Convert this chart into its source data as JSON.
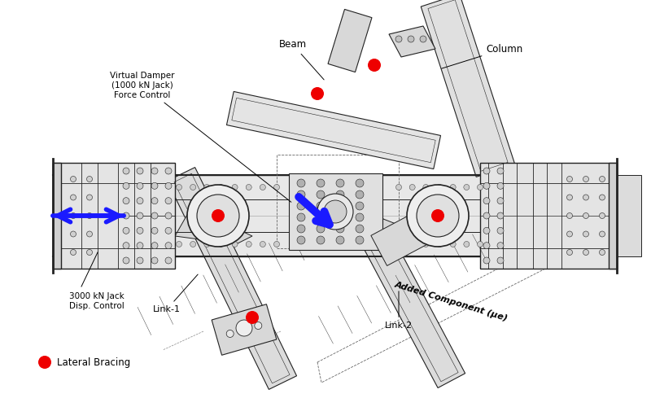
{
  "background_color": "#ffffff",
  "fig_width": 8.0,
  "fig_height": 5.0,
  "dpi": 100,
  "labels": {
    "virtual_damper": "Virtual Damper\n(1000 kN Jack)\nForce Control",
    "beam": "Beam",
    "column": "Column",
    "link1": "Link-1",
    "link2": "Link-2",
    "jack": "3000 kN Jack\nDisp. Control",
    "lateral_bracing": "Lateral Bracing",
    "added_component": "Added Component (μe)"
  },
  "colors": {
    "struct_edge": "#222222",
    "struct_fill": "#e0e0e0",
    "struct_fill2": "#d0d0d0",
    "struct_fill3": "#c8c8c8",
    "blue_arrow": "#1a1aff",
    "red_dot": "#ee0000",
    "black": "#000000",
    "white": "#ffffff",
    "gray": "#888888",
    "light_gray": "#f0f0f0",
    "mid_gray": "#b0b0b0"
  }
}
